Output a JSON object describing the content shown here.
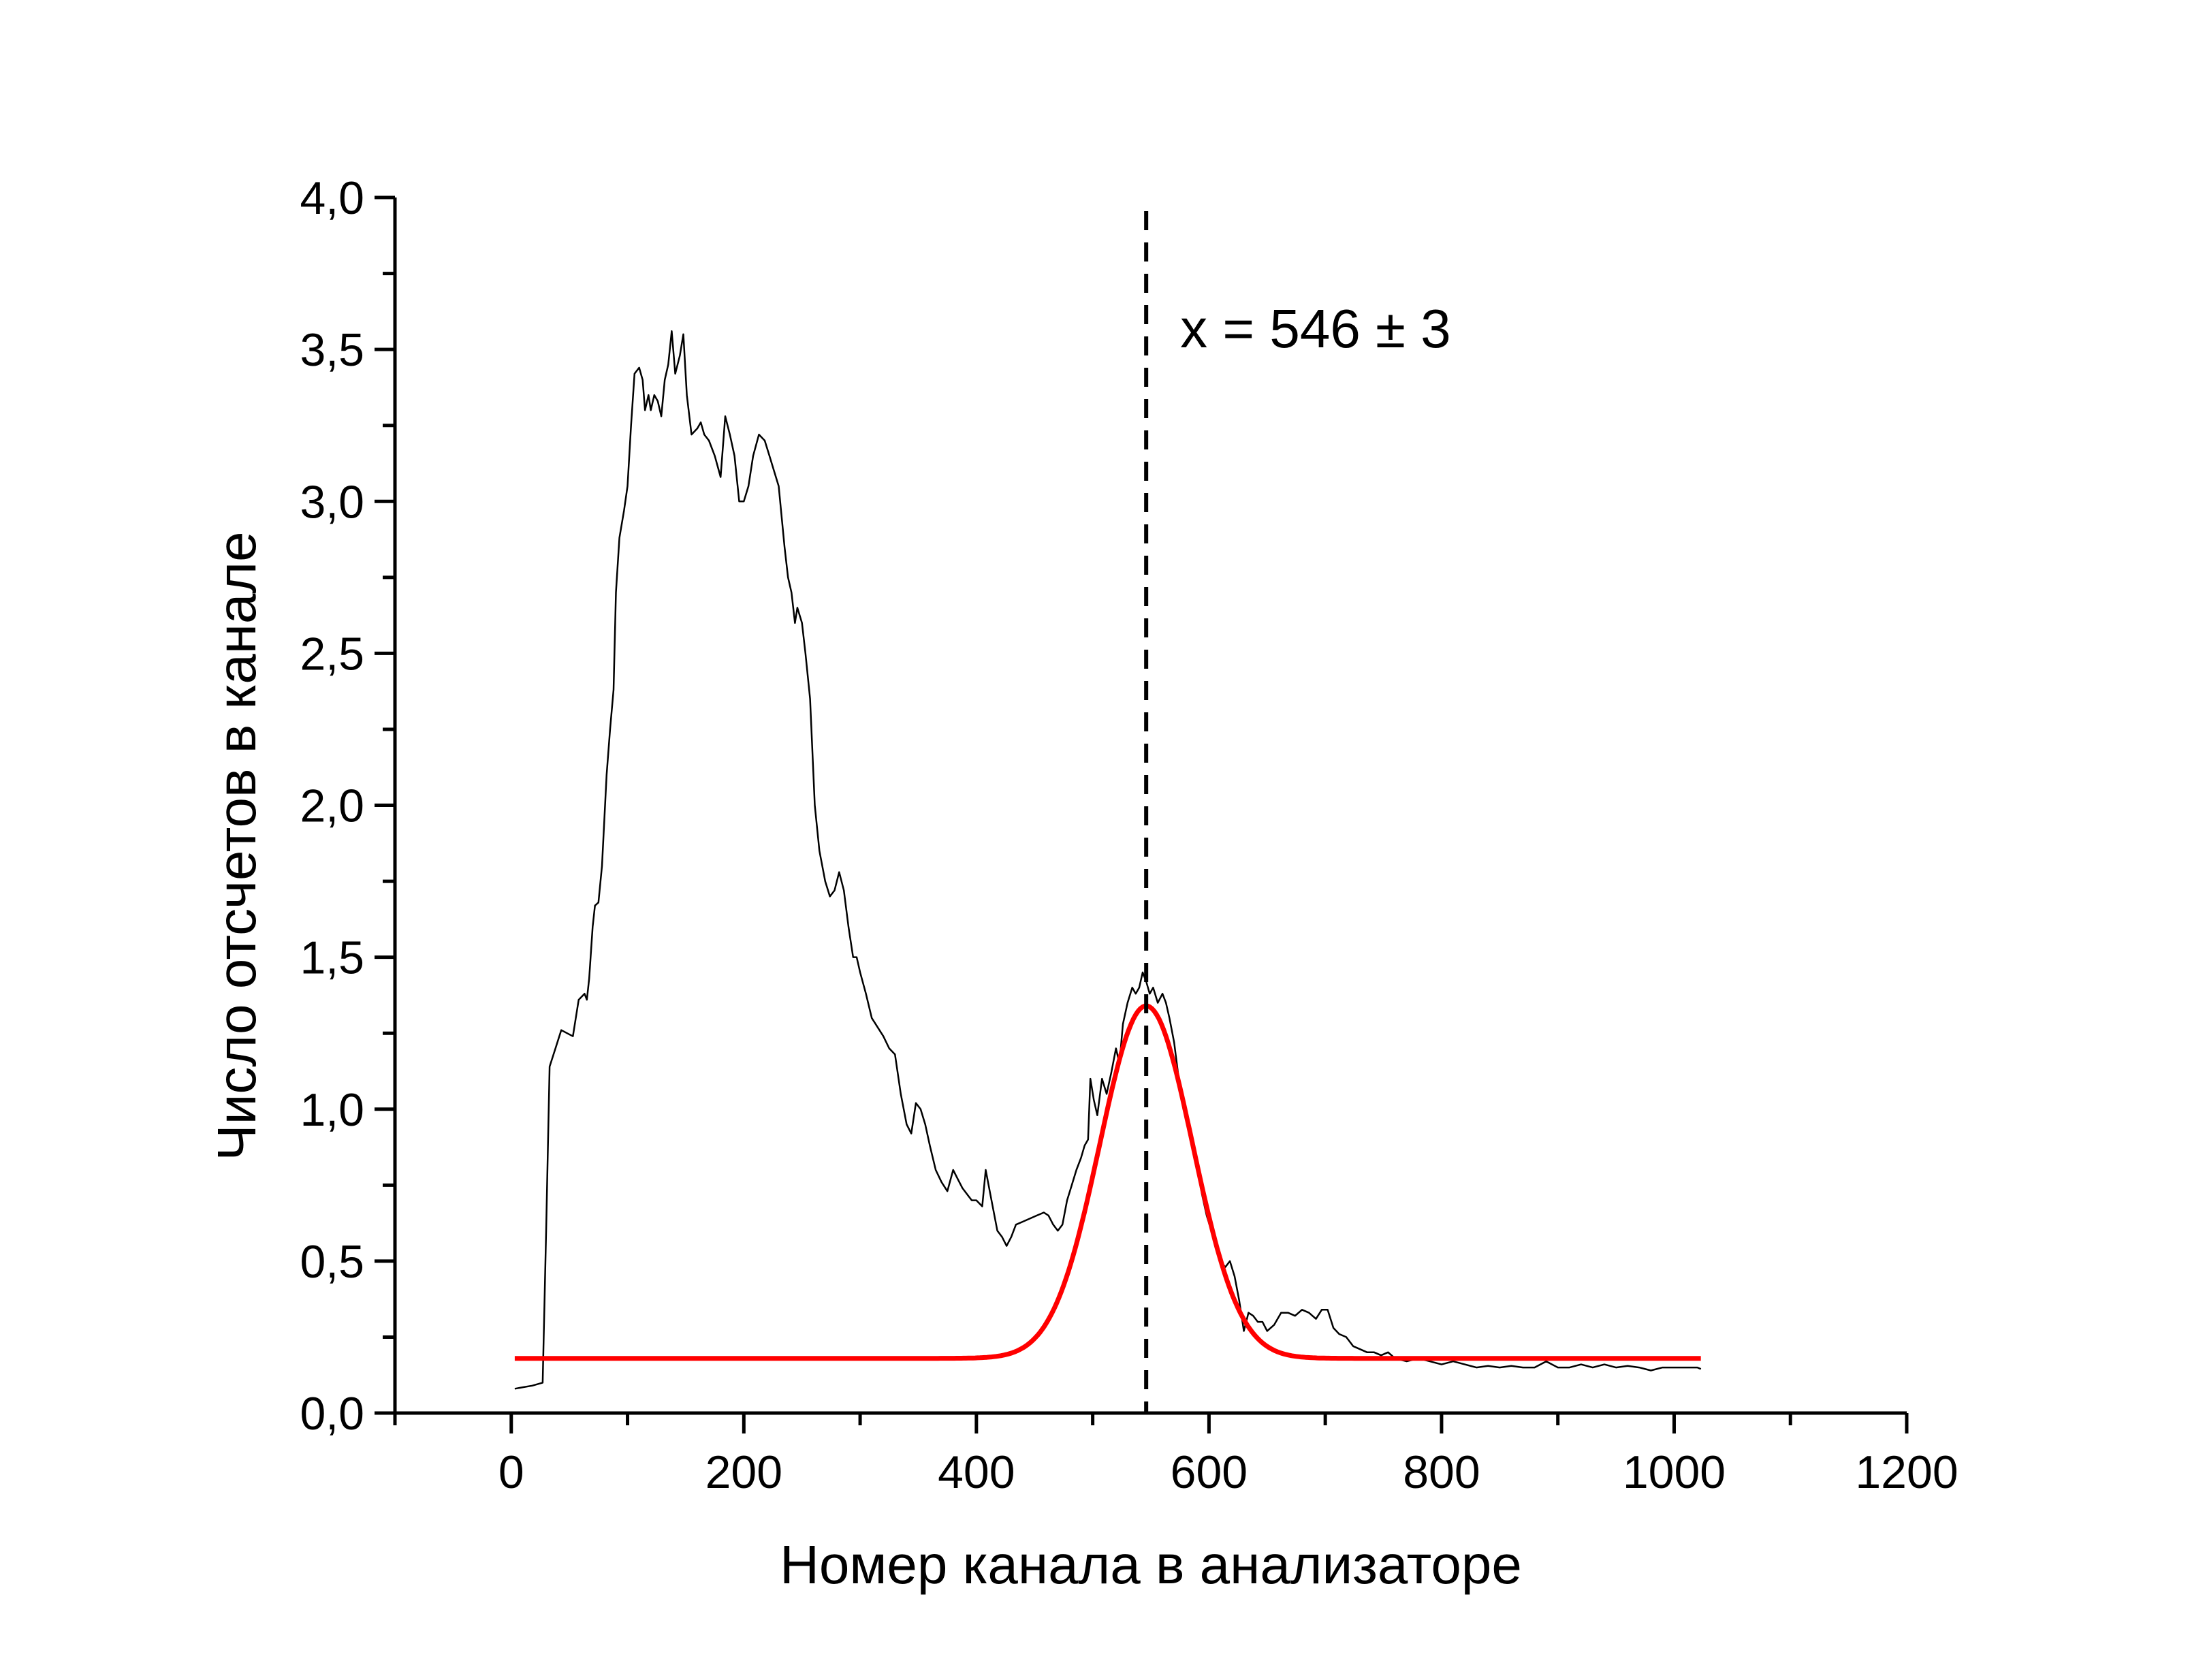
{
  "chart_data": {
    "type": "line",
    "xlabel": "Номер канала в анализаторе",
    "ylabel": "Число отсчетов в канале",
    "xlim": [
      -100,
      1200
    ],
    "ylim": [
      0,
      4
    ],
    "x_ticks": [
      0,
      200,
      400,
      600,
      800,
      1000,
      1200
    ],
    "x_tick_labels": [
      "0",
      "200",
      "400",
      "600",
      "800",
      "1000",
      "1200"
    ],
    "y_ticks": [
      0,
      0.5,
      1,
      1.5,
      2,
      2.5,
      3,
      3.5,
      4
    ],
    "y_tick_labels": [
      "0,0",
      "0,5",
      "1,0",
      "1,5",
      "2,0",
      "2,5",
      "3,0",
      "3,5",
      "4,0"
    ],
    "grid": false,
    "annotation": {
      "text": "x = 546 ± 3",
      "x": 546
    },
    "marker_line": {
      "x": 546,
      "style": "dashed"
    },
    "series": [
      {
        "kind": "measured",
        "color": "#000000",
        "points": [
          [
            3,
            0.08
          ],
          [
            10,
            0.085
          ],
          [
            18,
            0.09
          ],
          [
            27,
            0.1
          ],
          [
            30,
            0.6
          ],
          [
            33,
            1.14
          ],
          [
            38,
            1.2
          ],
          [
            43,
            1.26
          ],
          [
            48,
            1.25
          ],
          [
            53,
            1.24
          ],
          [
            58,
            1.36
          ],
          [
            63,
            1.38
          ],
          [
            65,
            1.36
          ],
          [
            67,
            1.43
          ],
          [
            70,
            1.6
          ],
          [
            72,
            1.67
          ],
          [
            75,
            1.68
          ],
          [
            78,
            1.8
          ],
          [
            82,
            2.1
          ],
          [
            85,
            2.25
          ],
          [
            88,
            2.38
          ],
          [
            90,
            2.7
          ],
          [
            93,
            2.88
          ],
          [
            97,
            2.97
          ],
          [
            100,
            3.05
          ],
          [
            103,
            3.25
          ],
          [
            106,
            3.42
          ],
          [
            110,
            3.44
          ],
          [
            113,
            3.4
          ],
          [
            115,
            3.3
          ],
          [
            118,
            3.35
          ],
          [
            120,
            3.3
          ],
          [
            123,
            3.35
          ],
          [
            126,
            3.33
          ],
          [
            129,
            3.28
          ],
          [
            132,
            3.4
          ],
          [
            135,
            3.45
          ],
          [
            138,
            3.56
          ],
          [
            141,
            3.42
          ],
          [
            145,
            3.48
          ],
          [
            148,
            3.55
          ],
          [
            151,
            3.35
          ],
          [
            155,
            3.22
          ],
          [
            160,
            3.24
          ],
          [
            163,
            3.26
          ],
          [
            166,
            3.22
          ],
          [
            170,
            3.2
          ],
          [
            175,
            3.15
          ],
          [
            180,
            3.08
          ],
          [
            184,
            3.28
          ],
          [
            188,
            3.22
          ],
          [
            192,
            3.15
          ],
          [
            196,
            3.0
          ],
          [
            200,
            3.0
          ],
          [
            204,
            3.05
          ],
          [
            208,
            3.15
          ],
          [
            213,
            3.22
          ],
          [
            218,
            3.2
          ],
          [
            222,
            3.15
          ],
          [
            226,
            3.1
          ],
          [
            230,
            3.05
          ],
          [
            235,
            2.85
          ],
          [
            238,
            2.75
          ],
          [
            241,
            2.7
          ],
          [
            244,
            2.6
          ],
          [
            246,
            2.65
          ],
          [
            250,
            2.6
          ],
          [
            253,
            2.5
          ],
          [
            257,
            2.35
          ],
          [
            261,
            2.0
          ],
          [
            265,
            1.85
          ],
          [
            270,
            1.75
          ],
          [
            274,
            1.7
          ],
          [
            278,
            1.72
          ],
          [
            282,
            1.78
          ],
          [
            286,
            1.72
          ],
          [
            290,
            1.6
          ],
          [
            294,
            1.5
          ],
          [
            297,
            1.5
          ],
          [
            300,
            1.45
          ],
          [
            305,
            1.38
          ],
          [
            310,
            1.3
          ],
          [
            315,
            1.27
          ],
          [
            320,
            1.24
          ],
          [
            325,
            1.2
          ],
          [
            330,
            1.18
          ],
          [
            335,
            1.05
          ],
          [
            340,
            0.95
          ],
          [
            344,
            0.92
          ],
          [
            348,
            1.02
          ],
          [
            352,
            1.0
          ],
          [
            356,
            0.95
          ],
          [
            360,
            0.88
          ],
          [
            365,
            0.8
          ],
          [
            370,
            0.76
          ],
          [
            375,
            0.73
          ],
          [
            380,
            0.8
          ],
          [
            384,
            0.77
          ],
          [
            388,
            0.74
          ],
          [
            392,
            0.72
          ],
          [
            396,
            0.7
          ],
          [
            400,
            0.7
          ],
          [
            405,
            0.68
          ],
          [
            408,
            0.8
          ],
          [
            412,
            0.72
          ],
          [
            418,
            0.6
          ],
          [
            422,
            0.58
          ],
          [
            426,
            0.55
          ],
          [
            430,
            0.58
          ],
          [
            434,
            0.62
          ],
          [
            440,
            0.63
          ],
          [
            446,
            0.64
          ],
          [
            452,
            0.65
          ],
          [
            458,
            0.66
          ],
          [
            462,
            0.65
          ],
          [
            466,
            0.62
          ],
          [
            470,
            0.6
          ],
          [
            474,
            0.62
          ],
          [
            478,
            0.7
          ],
          [
            482,
            0.75
          ],
          [
            486,
            0.8
          ],
          [
            490,
            0.84
          ],
          [
            493,
            0.88
          ],
          [
            496,
            0.9
          ],
          [
            498,
            1.1
          ],
          [
            501,
            1.03
          ],
          [
            504,
            0.98
          ],
          [
            508,
            1.1
          ],
          [
            512,
            1.05
          ],
          [
            516,
            1.12
          ],
          [
            520,
            1.2
          ],
          [
            523,
            1.15
          ],
          [
            526,
            1.28
          ],
          [
            530,
            1.35
          ],
          [
            534,
            1.4
          ],
          [
            537,
            1.38
          ],
          [
            540,
            1.4
          ],
          [
            543,
            1.45
          ],
          [
            546,
            1.42
          ],
          [
            549,
            1.38
          ],
          [
            552,
            1.4
          ],
          [
            556,
            1.35
          ],
          [
            560,
            1.38
          ],
          [
            563,
            1.35
          ],
          [
            566,
            1.3
          ],
          [
            570,
            1.22
          ],
          [
            574,
            1.1
          ],
          [
            578,
            1.0
          ],
          [
            582,
            0.95
          ],
          [
            586,
            0.9
          ],
          [
            590,
            0.8
          ],
          [
            594,
            0.72
          ],
          [
            598,
            0.65
          ],
          [
            602,
            0.6
          ],
          [
            606,
            0.55
          ],
          [
            610,
            0.5
          ],
          [
            614,
            0.48
          ],
          [
            618,
            0.5
          ],
          [
            622,
            0.45
          ],
          [
            626,
            0.37
          ],
          [
            630,
            0.27
          ],
          [
            634,
            0.33
          ],
          [
            638,
            0.32
          ],
          [
            642,
            0.3
          ],
          [
            646,
            0.3
          ],
          [
            650,
            0.27
          ],
          [
            656,
            0.29
          ],
          [
            662,
            0.33
          ],
          [
            668,
            0.33
          ],
          [
            674,
            0.32
          ],
          [
            680,
            0.34
          ],
          [
            686,
            0.33
          ],
          [
            692,
            0.31
          ],
          [
            697,
            0.34
          ],
          [
            702,
            0.34
          ],
          [
            707,
            0.28
          ],
          [
            712,
            0.26
          ],
          [
            718,
            0.25
          ],
          [
            724,
            0.22
          ],
          [
            730,
            0.21
          ],
          [
            736,
            0.2
          ],
          [
            742,
            0.2
          ],
          [
            748,
            0.19
          ],
          [
            754,
            0.2
          ],
          [
            760,
            0.18
          ],
          [
            770,
            0.17
          ],
          [
            780,
            0.18
          ],
          [
            790,
            0.17
          ],
          [
            800,
            0.16
          ],
          [
            810,
            0.17
          ],
          [
            820,
            0.16
          ],
          [
            830,
            0.15
          ],
          [
            840,
            0.155
          ],
          [
            850,
            0.15
          ],
          [
            860,
            0.155
          ],
          [
            870,
            0.15
          ],
          [
            880,
            0.15
          ],
          [
            890,
            0.17
          ],
          [
            900,
            0.15
          ],
          [
            910,
            0.15
          ],
          [
            920,
            0.16
          ],
          [
            930,
            0.15
          ],
          [
            940,
            0.16
          ],
          [
            950,
            0.15
          ],
          [
            960,
            0.155
          ],
          [
            970,
            0.15
          ],
          [
            980,
            0.14
          ],
          [
            990,
            0.15
          ],
          [
            1000,
            0.15
          ],
          [
            1010,
            0.15
          ],
          [
            1020,
            0.15
          ],
          [
            1023,
            0.145
          ]
        ]
      },
      {
        "kind": "fit",
        "color": "#ff0000",
        "function": "gaussian",
        "baseline": 0.18,
        "amplitude": 1.16,
        "center": 546,
        "sigma": 40,
        "x_range": [
          3,
          1023
        ]
      }
    ]
  }
}
